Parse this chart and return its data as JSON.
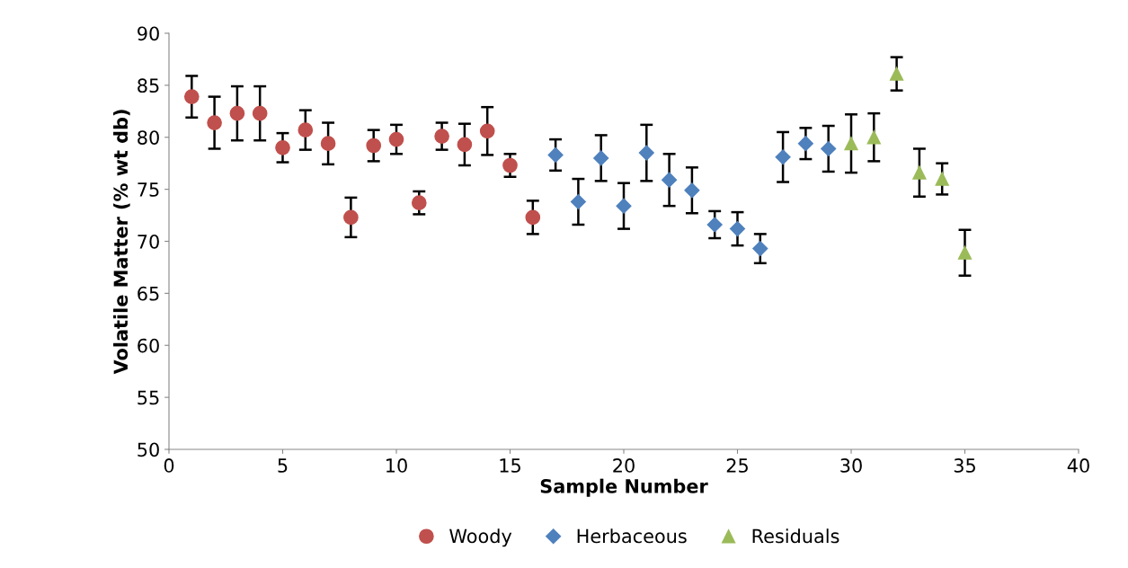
{
  "chart_data": {
    "type": "scatter",
    "xlabel": "Sample Number",
    "ylabel": "Volatile Matter (% wt db)",
    "xlim": [
      0,
      40
    ],
    "xticks": [
      0,
      5,
      10,
      15,
      20,
      25,
      30,
      35,
      40
    ],
    "ylim": [
      50,
      90
    ],
    "yticks": [
      50,
      55,
      60,
      65,
      70,
      75,
      80,
      85,
      90
    ],
    "grid": false,
    "legend": "bottom",
    "series": [
      {
        "name": "Woody",
        "color": "#c0504d",
        "marker": "circle",
        "x": [
          1,
          2,
          3,
          4,
          5,
          6,
          7,
          8,
          9,
          10,
          11,
          12,
          13,
          14,
          15,
          16
        ],
        "values": [
          83.9,
          81.4,
          82.3,
          82.3,
          79.0,
          80.7,
          79.4,
          72.3,
          79.2,
          79.8,
          73.7,
          80.1,
          79.3,
          80.6,
          77.3,
          72.3
        ],
        "errors": [
          2.0,
          2.5,
          2.6,
          2.6,
          1.4,
          1.9,
          2.0,
          1.9,
          1.5,
          1.4,
          1.1,
          1.3,
          2.0,
          2.3,
          1.1,
          1.6
        ]
      },
      {
        "name": "Herbaceous",
        "color": "#4f81bd",
        "marker": "diamond",
        "x": [
          17,
          18,
          19,
          20,
          21,
          22,
          23,
          24,
          25,
          26,
          27,
          28,
          29
        ],
        "values": [
          78.3,
          73.8,
          78.0,
          73.4,
          78.5,
          75.9,
          74.9,
          71.6,
          71.2,
          69.3,
          78.1,
          79.4,
          78.9
        ],
        "errors": [
          1.5,
          2.2,
          2.2,
          2.2,
          2.7,
          2.5,
          2.2,
          1.3,
          1.6,
          1.4,
          2.4,
          1.5,
          2.2
        ]
      },
      {
        "name": "Residuals",
        "color": "#9bbb59",
        "marker": "triangle",
        "x": [
          30,
          31,
          32,
          33,
          34,
          35
        ],
        "values": [
          79.4,
          80.0,
          86.1,
          76.6,
          76.0,
          68.9
        ],
        "errors": [
          2.8,
          2.3,
          1.6,
          2.3,
          1.5,
          2.2
        ]
      }
    ]
  }
}
